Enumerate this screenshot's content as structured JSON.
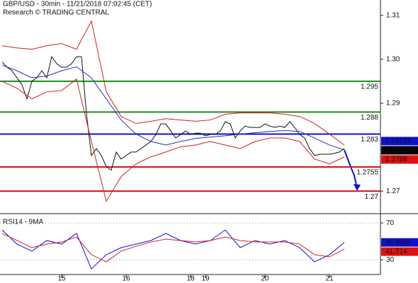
{
  "chart_data": [
    {
      "type": "line",
      "title": "GBP/USD - 30min - 11/21/2018 07:02:45 (CET)",
      "subtitle": "Research © TRADING CENTRAL",
      "categories": [
        null,
        null,
        null,
        null,
        null,
        null,
        null,
        null,
        null,
        null,
        null,
        null,
        "15",
        null,
        null,
        null,
        null,
        null,
        null,
        null,
        null,
        null,
        null,
        null,
        null,
        "16",
        null,
        null,
        null,
        null,
        null,
        null,
        null,
        null,
        null,
        null,
        null,
        null,
        "18",
        null,
        null,
        "19",
        null,
        null,
        null,
        null,
        null,
        null,
        null,
        null,
        null,
        null,
        null,
        "20",
        null,
        null,
        null,
        null,
        null,
        null,
        null,
        null,
        null,
        null,
        null,
        null,
        "21",
        null,
        null,
        null
      ],
      "ylim": [
        1.2652,
        1.3135
      ],
      "yticks": [
        1.31,
        {
          "value": 1.3,
          "label": "1.30"
        },
        1.29,
        1.27
      ],
      "series": [
        {
          "color": "#111111",
          "values": [
            1.2994,
            1.2982,
            1.2974,
            1.2958,
            1.2942,
            1.291,
            1.295,
            1.2958,
            1.2974,
            1.2958,
            1.3006,
            1.299,
            1.2982,
            1.2982,
            1.299,
            1.3006,
            1.3006,
            1.2877,
            1.2781,
            1.2797,
            1.2781,
            1.2756,
            1.2748,
            1.2789,
            1.2773,
            1.2781,
            1.2789,
            1.2789,
            1.2797,
            1.2805,
            1.2813,
            1.2829,
            1.2853,
            1.2853,
            1.2837,
            1.2821,
            1.2829,
            1.2837,
            1.2829,
            1.2832,
            1.2832,
            1.2826,
            1.2829,
            1.2829,
            1.2837,
            1.2858,
            1.2853,
            1.2821,
            1.2837,
            1.2848,
            1.2845,
            1.2845,
            1.2845,
            1.2853,
            1.2848,
            1.2845,
            1.2848,
            1.2845,
            1.2858,
            1.2845,
            1.2829,
            1.2821,
            1.2797,
            1.2781,
            1.2784,
            1.2784,
            1.2784,
            1.2786,
            1.2789,
            1.2797
          ]
        },
        {
          "color": "#d02020",
          "x": [
            0,
            3,
            6,
            9,
            12,
            15,
            18,
            21,
            24,
            27,
            30,
            33,
            36,
            39,
            42,
            45,
            48,
            51,
            54,
            57,
            60,
            63,
            66,
            69
          ],
          "values": [
            1.3031,
            1.3026,
            1.3023,
            1.3031,
            1.3036,
            1.3023,
            1.3087,
            1.2926,
            1.287,
            1.2854,
            1.2859,
            1.2865,
            1.2862,
            1.2859,
            1.2862,
            1.2875,
            1.2878,
            1.2878,
            1.2878,
            1.2875,
            1.287,
            1.2854,
            1.283,
            1.2805
          ]
        },
        {
          "color": "#d02020",
          "x": [
            0,
            3,
            6,
            9,
            12,
            15,
            18,
            21,
            24,
            27,
            30,
            33,
            36,
            39,
            42,
            45,
            48,
            51,
            54,
            57,
            60,
            63,
            66,
            69
          ],
          "values": [
            1.295,
            1.2934,
            1.291,
            1.2926,
            1.2929,
            1.2955,
            1.2813,
            1.2677,
            1.2733,
            1.2762,
            1.2778,
            1.2789,
            1.2801,
            1.2805,
            1.2813,
            1.2805,
            1.2797,
            1.2813,
            1.2821,
            1.2821,
            1.2813,
            1.2773,
            1.2762,
            1.2778
          ]
        },
        {
          "color": "#2030c0",
          "x": [
            0,
            3,
            6,
            9,
            12,
            15,
            18,
            21,
            24,
            27,
            30,
            33,
            36,
            39,
            42,
            45,
            48,
            51,
            54,
            57,
            60,
            63,
            66,
            69
          ],
          "values": [
            1.2987,
            1.2974,
            1.2958,
            1.2962,
            1.2974,
            1.2983,
            1.2958,
            1.291,
            1.2862,
            1.283,
            1.2813,
            1.2805,
            1.2813,
            1.282,
            1.2823,
            1.2826,
            1.283,
            1.2833,
            1.2836,
            1.2838,
            1.2836,
            1.2821,
            1.2805,
            1.2794
          ]
        }
      ],
      "levels": [
        {
          "value": 1.295,
          "color": "#1a8c1a"
        },
        {
          "value": 1.288,
          "color": "#1a8c1a"
        },
        {
          "value": 1.283,
          "color": "#1010d0"
        },
        {
          "value": 1.2755,
          "color": "#e01010"
        },
        {
          "value": 1.27,
          "color": "#e01010"
        }
      ],
      "tags": [
        {
          "value": 1.28139,
          "color": "#1010d0"
        },
        {
          "value": 1.2795,
          "color": "#000000"
        },
        {
          "value": 1.2788,
          "color": "#e01010"
        }
      ]
    },
    {
      "type": "line",
      "title": "RSI14 - 9MA",
      "ylim": [
        14,
        77
      ],
      "yticks": [
        70,
        30
      ],
      "grid": true,
      "series": [
        {
          "color": "#1010d0",
          "x": [
            0,
            3,
            6,
            9,
            12,
            15,
            18,
            21,
            24,
            27,
            30,
            33,
            36,
            39,
            42,
            45,
            48,
            51,
            54,
            57,
            60,
            63,
            66,
            69
          ],
          "values": [
            62.4,
            47.0,
            39.4,
            50.9,
            47.0,
            58.6,
            20.1,
            35.5,
            43.2,
            47.0,
            50.9,
            58.6,
            50.9,
            47.0,
            50.9,
            62.4,
            43.2,
            50.9,
            47.0,
            50.9,
            43.2,
            27.8,
            35.5,
            48.9
          ]
        },
        {
          "color": "#d02020",
          "x": [
            0,
            3,
            6,
            9,
            12,
            15,
            18,
            21,
            24,
            27,
            30,
            33,
            36,
            39,
            42,
            45,
            48,
            51,
            54,
            57,
            60,
            63,
            66,
            69
          ],
          "values": [
            58.6,
            50.9,
            43.2,
            47.0,
            49.3,
            54.7,
            35.5,
            27.8,
            39.4,
            44.7,
            49.3,
            52.4,
            50.9,
            49.3,
            50.9,
            54.7,
            50.9,
            49.3,
            49.3,
            49.3,
            47.0,
            35.5,
            33.2,
            41.7
          ]
        }
      ],
      "tags": [
        {
          "value": 48.8669,
          "color": "#1010d0"
        },
        {
          "value": 41.714,
          "color": "#e01010"
        }
      ]
    }
  ]
}
